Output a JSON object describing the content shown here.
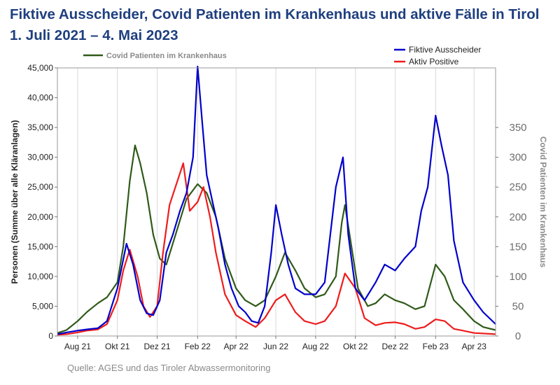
{
  "title": {
    "line1": "Fiktive Ausscheider, Covid Patienten im Krankenhaus und aktive Fälle in Tirol",
    "line2": "1. Juli 2021 – 4. Mai 2023"
  },
  "source": "Quelle: AGES und das Tiroler Abwassermonitoring",
  "chart_data": {
    "type": "line",
    "x_axis": {
      "ticks": [
        "Aug 21",
        "Okt 21",
        "Dez 21",
        "Feb 22",
        "Apr 22",
        "Jun 22",
        "Aug 22",
        "Okt 22",
        "Dez 22",
        "Feb 23",
        "Apr 23"
      ],
      "tick_dates": [
        "2021-08-01",
        "2021-10-01",
        "2021-12-01",
        "2022-02-01",
        "2022-04-01",
        "2022-06-01",
        "2022-08-01",
        "2022-10-01",
        "2022-12-01",
        "2023-02-01",
        "2023-04-01"
      ],
      "range": [
        "2021-07-01",
        "2023-05-04"
      ]
    },
    "y_left": {
      "label": "Personen (Summe über alle Kläranlagen)",
      "ticks": [
        "0",
        "5,000",
        "10,000",
        "15,000",
        "20,000",
        "25,000",
        "30,000",
        "35,000",
        "40,000",
        "45,000"
      ],
      "range": [
        0,
        45000
      ],
      "tick_step": 5000
    },
    "y_right": {
      "label": "Covid Patienten im Krankenhaus",
      "ticks": [
        "0",
        "50",
        "100",
        "150",
        "200",
        "250",
        "300",
        "350"
      ],
      "range": [
        0,
        450
      ],
      "tick_step": 50
    },
    "legend_left": "Covid Patienten im Krankenhaus",
    "legend_right": [
      "Fiktive Ausscheider",
      "Aktiv Positive"
    ],
    "series": [
      {
        "name": "Fiktive Ausscheider",
        "axis": "left",
        "color": "#0000cc",
        "points": [
          [
            "2021-07-01",
            300
          ],
          [
            "2021-07-15",
            600
          ],
          [
            "2021-08-01",
            900
          ],
          [
            "2021-08-15",
            1100
          ],
          [
            "2021-09-01",
            1300
          ],
          [
            "2021-09-15",
            2500
          ],
          [
            "2021-10-01",
            8000
          ],
          [
            "2021-10-15",
            15500
          ],
          [
            "2021-10-25",
            12000
          ],
          [
            "2021-11-05",
            6000
          ],
          [
            "2021-11-15",
            3800
          ],
          [
            "2021-11-25",
            3500
          ],
          [
            "2021-12-05",
            6000
          ],
          [
            "2021-12-15",
            14000
          ],
          [
            "2021-12-25",
            17000
          ],
          [
            "2022-01-05",
            21000
          ],
          [
            "2022-01-15",
            24000
          ],
          [
            "2022-01-25",
            30000
          ],
          [
            "2022-02-01",
            45500
          ],
          [
            "2022-02-08",
            36000
          ],
          [
            "2022-02-15",
            27000
          ],
          [
            "2022-02-25",
            22000
          ],
          [
            "2022-03-05",
            18000
          ],
          [
            "2022-03-15",
            12000
          ],
          [
            "2022-03-25",
            8000
          ],
          [
            "2022-04-05",
            5000
          ],
          [
            "2022-04-15",
            4000
          ],
          [
            "2022-04-25",
            2500
          ],
          [
            "2022-05-05",
            2200
          ],
          [
            "2022-05-15",
            5000
          ],
          [
            "2022-05-25",
            14000
          ],
          [
            "2022-06-01",
            22000
          ],
          [
            "2022-06-10",
            17000
          ],
          [
            "2022-06-20",
            12000
          ],
          [
            "2022-07-01",
            8000
          ],
          [
            "2022-07-15",
            7000
          ],
          [
            "2022-08-01",
            7000
          ],
          [
            "2022-08-15",
            9000
          ],
          [
            "2022-09-01",
            25000
          ],
          [
            "2022-09-12",
            30000
          ],
          [
            "2022-09-20",
            17000
          ],
          [
            "2022-10-01",
            8000
          ],
          [
            "2022-10-15",
            6000
          ],
          [
            "2022-11-01",
            9000
          ],
          [
            "2022-11-15",
            12000
          ],
          [
            "2022-12-01",
            11000
          ],
          [
            "2022-12-15",
            13000
          ],
          [
            "2023-01-01",
            15000
          ],
          [
            "2023-01-10",
            21000
          ],
          [
            "2023-01-20",
            25000
          ],
          [
            "2023-02-01",
            37000
          ],
          [
            "2023-02-10",
            32000
          ],
          [
            "2023-02-20",
            27000
          ],
          [
            "2023-03-01",
            16000
          ],
          [
            "2023-03-15",
            9000
          ],
          [
            "2023-04-01",
            6000
          ],
          [
            "2023-04-15",
            4000
          ],
          [
            "2023-05-04",
            2000
          ]
        ]
      },
      {
        "name": "Aktiv Positive",
        "axis": "left",
        "color": "#ee1c1c",
        "points": [
          [
            "2021-07-01",
            200
          ],
          [
            "2021-07-15",
            300
          ],
          [
            "2021-08-01",
            600
          ],
          [
            "2021-08-15",
            900
          ],
          [
            "2021-09-01",
            1100
          ],
          [
            "2021-09-15",
            2000
          ],
          [
            "2021-10-01",
            6000
          ],
          [
            "2021-10-10",
            11000
          ],
          [
            "2021-10-20",
            14500
          ],
          [
            "2021-11-01",
            10000
          ],
          [
            "2021-11-10",
            5000
          ],
          [
            "2021-11-20",
            3200
          ],
          [
            "2021-12-01",
            5000
          ],
          [
            "2021-12-10",
            14000
          ],
          [
            "2021-12-20",
            22000
          ],
          [
            "2022-01-01",
            26000
          ],
          [
            "2022-01-10",
            29000
          ],
          [
            "2022-01-20",
            21000
          ],
          [
            "2022-02-01",
            22500
          ],
          [
            "2022-02-10",
            25000
          ],
          [
            "2022-02-20",
            20000
          ],
          [
            "2022-03-01",
            14000
          ],
          [
            "2022-03-15",
            7000
          ],
          [
            "2022-04-01",
            3500
          ],
          [
            "2022-04-15",
            2500
          ],
          [
            "2022-05-01",
            1500
          ],
          [
            "2022-05-15",
            3000
          ],
          [
            "2022-06-01",
            6000
          ],
          [
            "2022-06-15",
            7000
          ],
          [
            "2022-07-01",
            4000
          ],
          [
            "2022-07-15",
            2500
          ],
          [
            "2022-08-01",
            2000
          ],
          [
            "2022-08-15",
            2500
          ],
          [
            "2022-09-01",
            5000
          ],
          [
            "2022-09-15",
            10500
          ],
          [
            "2022-10-01",
            8000
          ],
          [
            "2022-10-15",
            3000
          ],
          [
            "2022-11-01",
            1800
          ],
          [
            "2022-11-15",
            2200
          ],
          [
            "2022-12-01",
            2300
          ],
          [
            "2022-12-15",
            2000
          ],
          [
            "2023-01-01",
            1200
          ],
          [
            "2023-01-15",
            1500
          ],
          [
            "2023-02-01",
            2800
          ],
          [
            "2023-02-15",
            2500
          ],
          [
            "2023-03-01",
            1200
          ],
          [
            "2023-03-15",
            900
          ],
          [
            "2023-04-01",
            500
          ],
          [
            "2023-05-04",
            300
          ]
        ]
      },
      {
        "name": "Covid Patienten im Krankenhaus",
        "axis": "right",
        "color": "#2f5a18",
        "points": [
          [
            "2021-07-01",
            5
          ],
          [
            "2021-07-15",
            10
          ],
          [
            "2021-08-01",
            25
          ],
          [
            "2021-08-15",
            40
          ],
          [
            "2021-09-01",
            55
          ],
          [
            "2021-09-15",
            65
          ],
          [
            "2021-10-01",
            90
          ],
          [
            "2021-10-10",
            150
          ],
          [
            "2021-10-20",
            260
          ],
          [
            "2021-10-28",
            320
          ],
          [
            "2021-11-05",
            290
          ],
          [
            "2021-11-15",
            240
          ],
          [
            "2021-11-25",
            170
          ],
          [
            "2021-12-05",
            130
          ],
          [
            "2021-12-15",
            120
          ],
          [
            "2022-01-01",
            180
          ],
          [
            "2022-01-15",
            230
          ],
          [
            "2022-02-01",
            255
          ],
          [
            "2022-02-15",
            240
          ],
          [
            "2022-03-01",
            200
          ],
          [
            "2022-03-15",
            130
          ],
          [
            "2022-04-01",
            80
          ],
          [
            "2022-04-15",
            60
          ],
          [
            "2022-05-01",
            50
          ],
          [
            "2022-05-15",
            60
          ],
          [
            "2022-06-01",
            100
          ],
          [
            "2022-06-15",
            140
          ],
          [
            "2022-07-01",
            110
          ],
          [
            "2022-07-15",
            80
          ],
          [
            "2022-08-01",
            65
          ],
          [
            "2022-08-15",
            70
          ],
          [
            "2022-09-01",
            100
          ],
          [
            "2022-09-10",
            190
          ],
          [
            "2022-09-15",
            220
          ],
          [
            "2022-09-25",
            150
          ],
          [
            "2022-10-05",
            80
          ],
          [
            "2022-10-20",
            50
          ],
          [
            "2022-11-01",
            55
          ],
          [
            "2022-11-15",
            70
          ],
          [
            "2022-12-01",
            60
          ],
          [
            "2022-12-15",
            55
          ],
          [
            "2023-01-01",
            45
          ],
          [
            "2023-01-15",
            50
          ],
          [
            "2023-02-01",
            120
          ],
          [
            "2023-02-15",
            100
          ],
          [
            "2023-03-01",
            60
          ],
          [
            "2023-03-15",
            45
          ],
          [
            "2023-04-01",
            25
          ],
          [
            "2023-04-15",
            15
          ],
          [
            "2023-05-04",
            10
          ]
        ]
      }
    ]
  }
}
